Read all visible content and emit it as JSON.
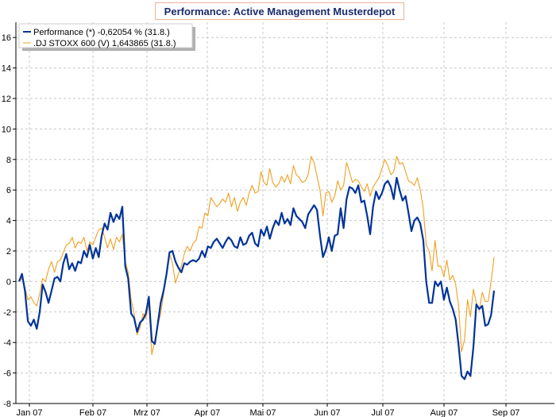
{
  "chart_data": {
    "type": "line",
    "title": "Performance: Active Management Musterdepot",
    "xlabel": "",
    "ylabel": "",
    "ylim": [
      -8,
      17
    ],
    "y_ticks": [
      -8,
      -6,
      -4,
      -2,
      0,
      2,
      4,
      6,
      8,
      10,
      12,
      14,
      16
    ],
    "x_tick_labels": [
      "Jan 07",
      "Feb 07",
      "Mrz 07",
      "Apr 07",
      "Mai 07",
      "Jun 07",
      "Jul 07",
      "Aug 07",
      "Sep 07"
    ],
    "grid": true,
    "legend_position": "top-left",
    "series": [
      {
        "name": "Performance (*) -0,62054 % (31.8.)",
        "color": "#003399",
        "values": [
          0.0,
          0.5,
          -0.6,
          -2.6,
          -2.9,
          -2.5,
          -3.1,
          -2.0,
          -0.2,
          -0.7,
          -1.4,
          -0.6,
          0.2,
          0.3,
          0.0,
          1.2,
          1.8,
          0.8,
          1.2,
          0.7,
          1.3,
          1.2,
          2.0,
          1.6,
          2.4,
          1.5,
          2.2,
          1.6,
          3.0,
          3.8,
          3.4,
          4.5,
          3.9,
          4.4,
          4.1,
          4.9,
          1.0,
          0.2,
          -2.1,
          -2.4,
          -3.3,
          -2.7,
          -2.5,
          -2.1,
          -1.0,
          -3.9,
          -4.1,
          -2.8,
          -1.4,
          -0.6,
          0.5,
          1.9,
          2.0,
          1.3,
          0.9,
          0.6,
          1.2,
          1.1,
          1.3,
          1.4,
          1.3,
          1.5,
          2.0,
          1.6,
          2.3,
          2.2,
          2.6,
          2.8,
          2.5,
          2.2,
          2.6,
          2.9,
          2.7,
          2.3,
          2.2,
          2.9,
          2.4,
          2.5,
          3.0,
          3.2,
          2.5,
          2.3,
          3.4,
          3.0,
          3.6,
          2.8,
          3.5,
          4.0,
          3.7,
          4.5,
          3.8,
          4.1,
          3.7,
          4.8,
          4.3,
          4.1,
          3.9,
          3.5,
          4.4,
          4.7,
          5.0,
          4.7,
          3.0,
          1.6,
          2.1,
          2.9,
          2.0,
          3.0,
          3.1,
          4.8,
          3.5,
          5.4,
          6.2,
          6.1,
          5.8,
          6.3,
          5.2,
          5.3,
          4.3,
          3.1,
          4.9,
          5.9,
          5.4,
          5.8,
          6.4,
          6.6,
          6.2,
          5.4,
          6.8,
          6.0,
          5.3,
          5.6,
          4.5,
          3.3,
          4.0,
          4.2,
          3.8,
          2.7,
          0.0,
          -1.4,
          -1.4,
          0.0,
          -0.3,
          0.0,
          -1.2,
          -0.4,
          -1.3,
          -1.8,
          -2.5,
          -4.2,
          -6.2,
          -6.4,
          -5.9,
          -6.2,
          -4.3,
          -1.5,
          -1.8,
          -1.6,
          -2.9,
          -2.8,
          -2.2,
          -0.6
        ],
        "values_end": -0.62054
      },
      {
        "name": ".DJ STOXX 600 (V) 1,643865 (31.8.)",
        "color": "#f0a020",
        "values": [
          0.0,
          0.2,
          -0.4,
          -1.2,
          -1.0,
          -1.4,
          -1.6,
          -0.8,
          0.2,
          0.0,
          0.8,
          1.3,
          0.6,
          1.3,
          1.4,
          1.9,
          2.4,
          2.5,
          2.9,
          2.2,
          2.6,
          2.5,
          2.9,
          2.0,
          2.6,
          2.4,
          2.9,
          3.4,
          3.5,
          2.9,
          2.2,
          2.8,
          2.1,
          2.9,
          2.6,
          3.1,
          1.3,
          0.6,
          -1.2,
          -2.1,
          -3.5,
          -3.0,
          -2.1,
          -2.4,
          -1.4,
          -4.8,
          -3.9,
          -2.9,
          -2.1,
          -0.8,
          0.6,
          1.8,
          1.2,
          -0.1,
          0.5,
          1.0,
          1.8,
          2.3,
          2.0,
          2.5,
          2.7,
          3.6,
          3.5,
          4.5,
          4.3,
          5.5,
          5.2,
          4.9,
          5.1,
          5.4,
          5.2,
          5.8,
          4.9,
          5.5,
          4.6,
          5.2,
          5.5,
          5.0,
          5.8,
          6.3,
          5.8,
          5.9,
          7.2,
          6.5,
          6.3,
          7.4,
          6.5,
          6.2,
          6.4,
          6.9,
          6.5,
          7.0,
          6.4,
          7.6,
          7.0,
          6.8,
          6.5,
          6.6,
          7.0,
          8.2,
          7.8,
          6.9,
          6.0,
          4.3,
          5.8,
          5.9,
          5.2,
          5.6,
          6.6,
          6.0,
          6.3,
          7.8,
          7.2,
          6.5,
          6.7,
          6.6,
          6.2,
          5.9,
          6.4,
          5.6,
          6.2,
          6.5,
          6.8,
          7.4,
          8.0,
          7.6,
          7.0,
          7.2,
          8.2,
          7.7,
          7.8,
          7.2,
          6.6,
          6.5,
          6.3,
          6.8,
          6.0,
          4.8,
          2.4,
          2.0,
          0.7,
          2.7,
          1.0,
          1.0,
          0.3,
          1.4,
          0.1,
          0.4,
          -0.2,
          -1.6,
          -4.6,
          -3.8,
          -1.2,
          -2.3,
          -0.5,
          -1.4,
          -1.9,
          -0.7,
          -1.3,
          -1.3,
          0.0,
          1.6
        ]
      }
    ]
  }
}
